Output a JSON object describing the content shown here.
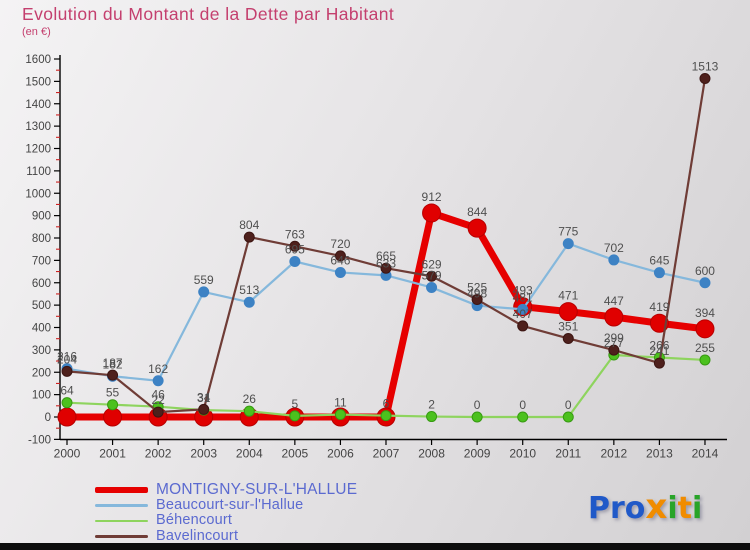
{
  "title": "Evolution du Montant de la Dette par Habitant",
  "subtitle": "(en €)",
  "title_color": "#c43f6e",
  "chart_data": {
    "type": "line",
    "title": "Evolution du Montant de la Dette par Habitant",
    "subtitle": "(en €)",
    "xlabel": "",
    "ylabel": "en €",
    "ylim": [
      -100,
      1600
    ],
    "ytick_step": 100,
    "grid": false,
    "legend_position": "bottom-left",
    "categories": [
      "2000",
      "2001",
      "2002",
      "2003",
      "2004",
      "2005",
      "2006",
      "2007",
      "2008",
      "2009",
      "2010",
      "2011",
      "2012",
      "2013",
      "2014"
    ],
    "series": [
      {
        "name": "MONTIGNY-SUR-L'HALLUE",
        "color": "#e60000",
        "dot_color": "#e00000",
        "dot_edge": "#b80000",
        "thick": true,
        "hide_zero_labels": true,
        "values": [
          0,
          0,
          0,
          0,
          0,
          0,
          0,
          0,
          912,
          844,
          493,
          471,
          447,
          419,
          394
        ]
      },
      {
        "name": "Beaucourt-sur-l'Hallue",
        "color": "#85b8dc",
        "dot_color": "#3d82c4",
        "dot_edge": "#3d82c4",
        "thick": false,
        "hide_zero_labels": false,
        "values": [
          216,
          182,
          162,
          559,
          513,
          695,
          646,
          633,
          579,
          498,
          481,
          775,
          702,
          645,
          600
        ]
      },
      {
        "name": "Béhencourt",
        "color": "#8ed45e",
        "dot_color": "#4cc11e",
        "dot_edge": "#379a12",
        "thick": false,
        "hide_zero_labels": false,
        "values": [
          64,
          55,
          46,
          31,
          26,
          5,
          11,
          6,
          2,
          0,
          0,
          0,
          277,
          266,
          255
        ]
      },
      {
        "name": "Bavelincourt",
        "color": "#6f3c36",
        "dot_color": "#4e201c",
        "dot_edge": "#3c1512",
        "thick": false,
        "hide_zero_labels": false,
        "values": [
          204,
          187,
          22,
          34,
          804,
          763,
          720,
          665,
          629,
          525,
          407,
          351,
          299,
          241,
          1513
        ]
      }
    ],
    "axis_color": "#000000",
    "tick_label_color": "#444444",
    "minor_tick_color": "#cc2222",
    "data_label_color": "#4f4f4f"
  },
  "logo": {
    "word": "Proxiti",
    "letters": [
      {
        "ch": "P",
        "color": "#2059c8",
        "big": false
      },
      {
        "ch": "r",
        "color": "#2059c8",
        "big": false
      },
      {
        "ch": "o",
        "color": "#2059c8",
        "big": false
      },
      {
        "ch": "x",
        "color": "#f08c00",
        "big": true
      },
      {
        "ch": "i",
        "color": "#28a428",
        "big": false
      },
      {
        "ch": "t",
        "color": "#f08c00",
        "big": false
      },
      {
        "ch": "i",
        "color": "#28a428",
        "big": false
      }
    ]
  }
}
